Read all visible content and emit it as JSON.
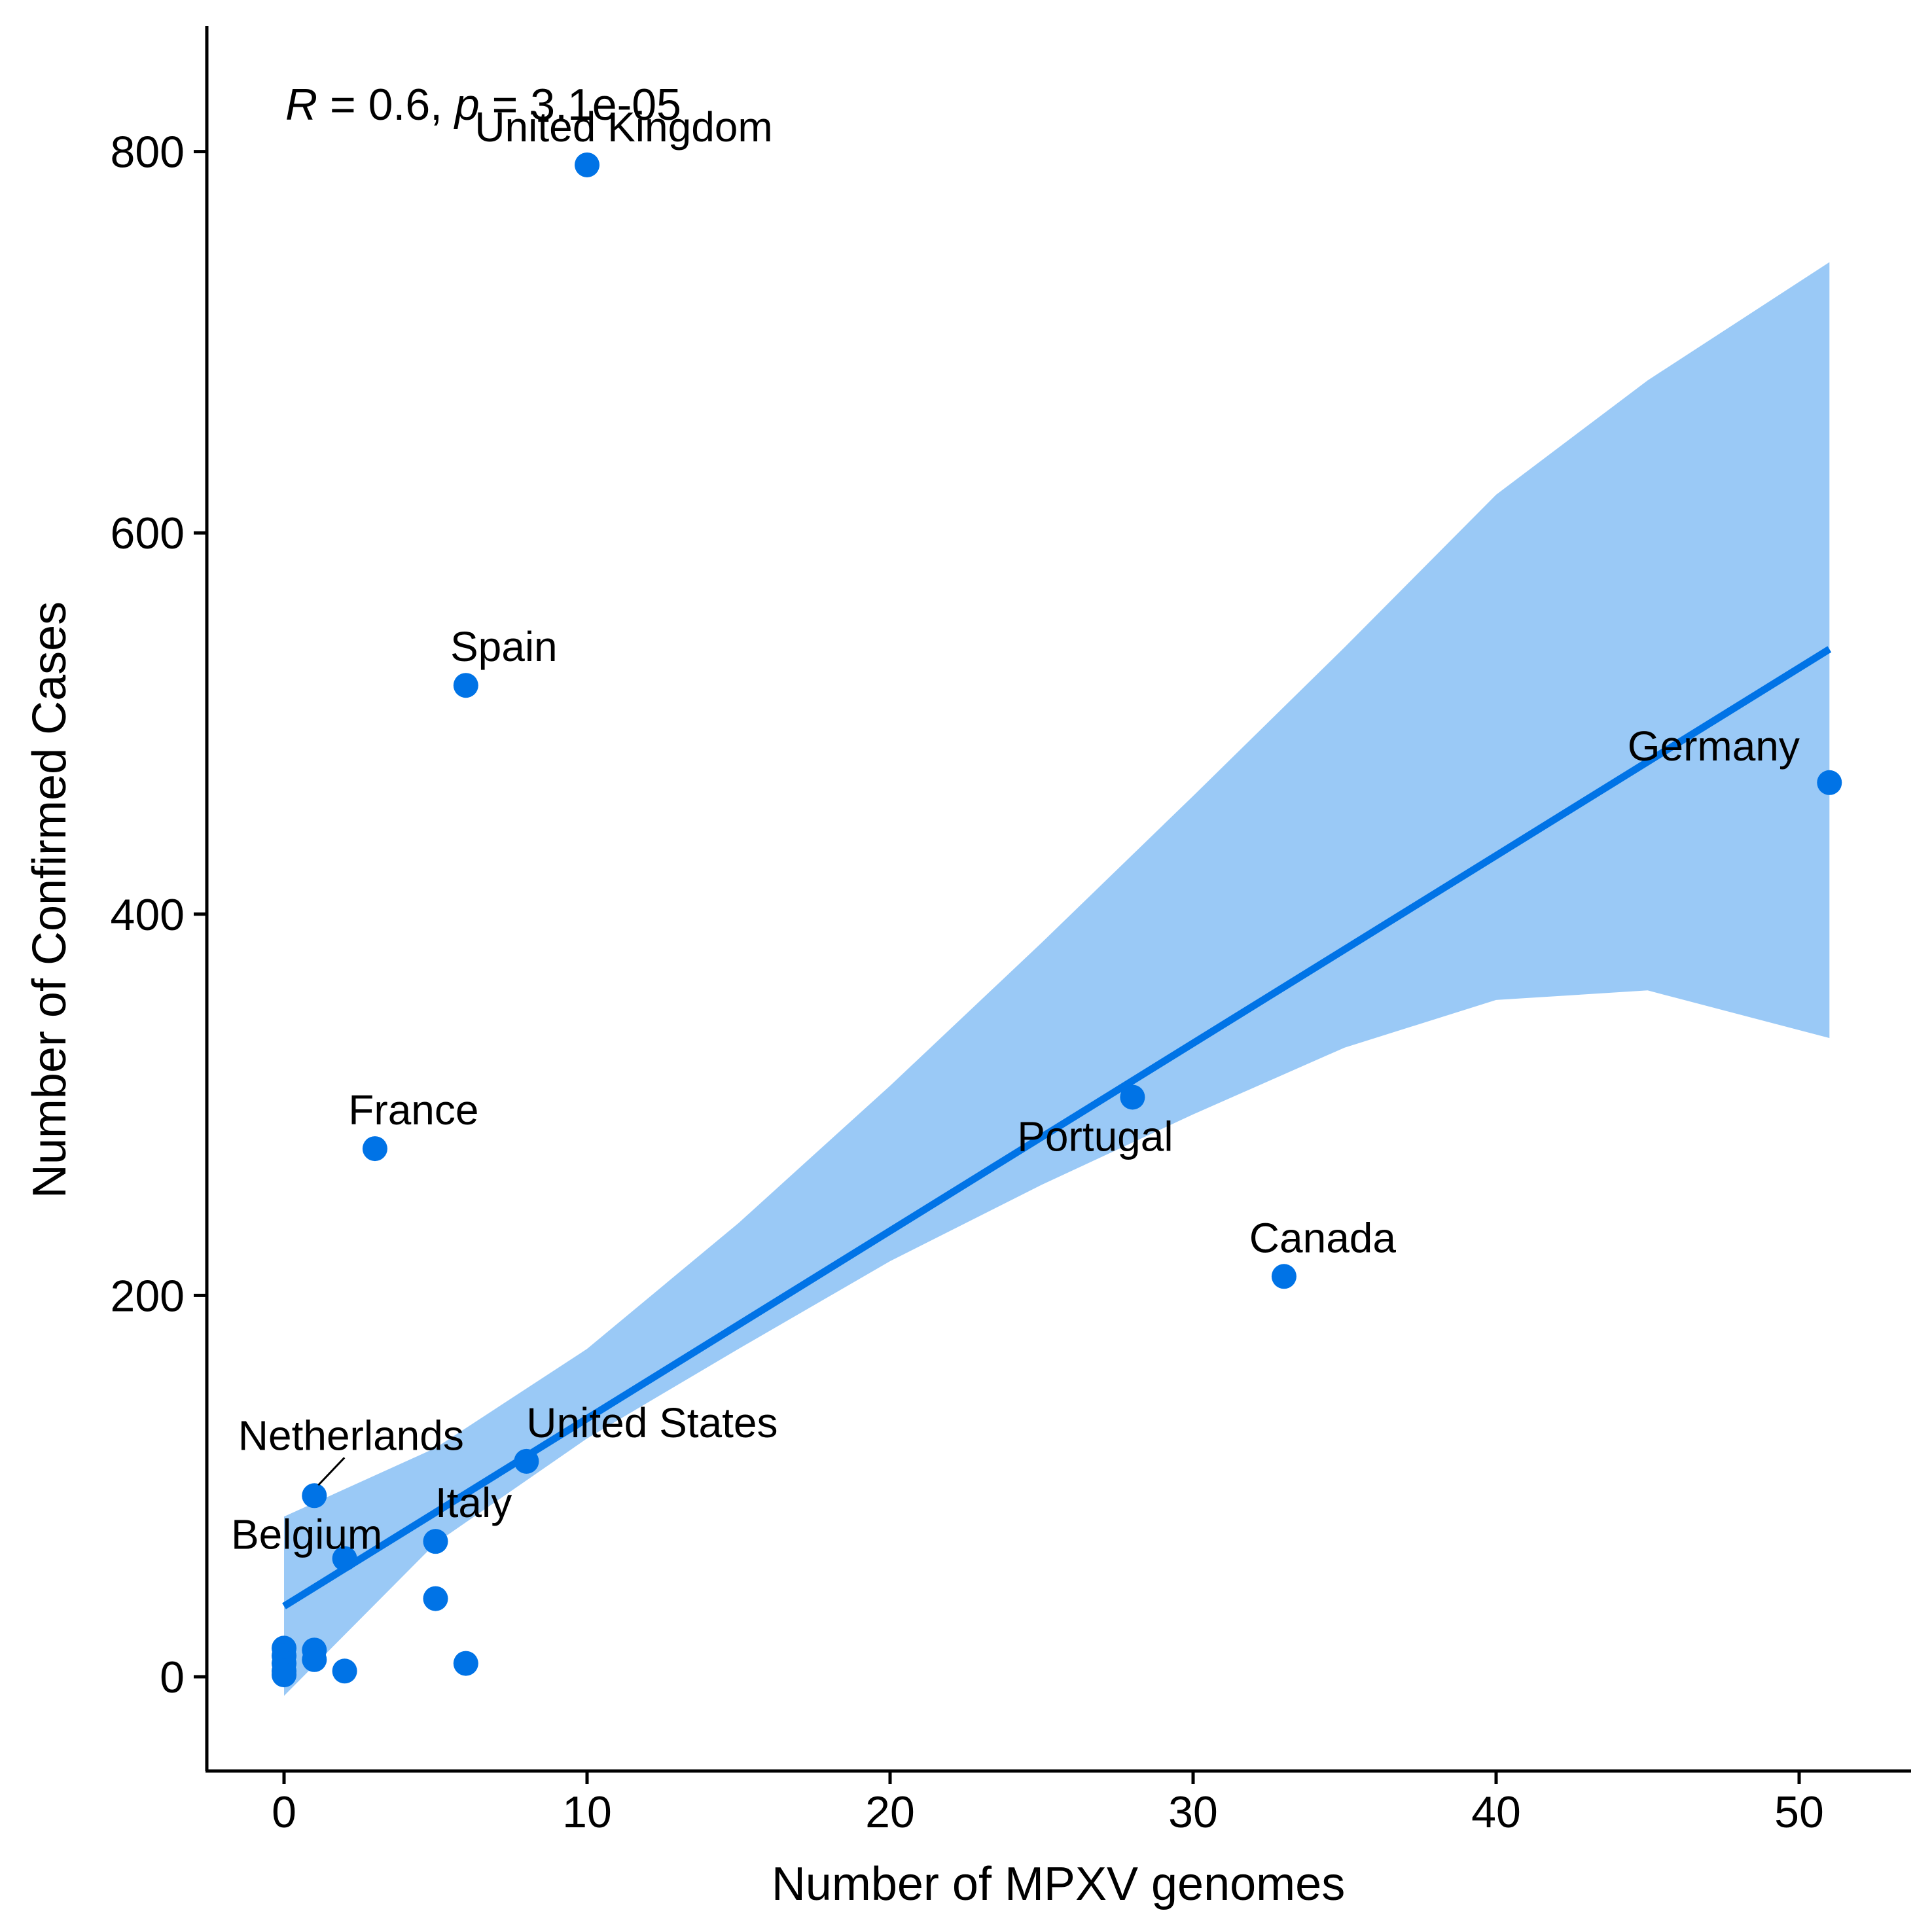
{
  "chart_data": {
    "type": "scatter",
    "xlabel": "Number of MPXV genomes",
    "ylabel": "Number of Confirmed Cases",
    "xlim": [
      -2.5,
      53.5
    ],
    "ylim": [
      -50,
      865
    ],
    "x_ticks": [
      0,
      10,
      20,
      30,
      40,
      50
    ],
    "y_ticks": [
      0,
      200,
      400,
      600,
      800
    ],
    "grid": false,
    "legend": "none",
    "colors": {
      "points": "#0073e6",
      "line": "#0073e6",
      "band": "#9ac9f6",
      "axis": "#000000"
    },
    "annotation": {
      "r_symbol": "R",
      "r_text": " = 0.6, ",
      "p_symbol": "p",
      "p_text": " = 3.1e-05"
    },
    "points": [
      {
        "x": 10,
        "y": 793,
        "label": "United Kingdom"
      },
      {
        "x": 6,
        "y": 520,
        "label": "Spain"
      },
      {
        "x": 51,
        "y": 469,
        "label": "Germany"
      },
      {
        "x": 28,
        "y": 304,
        "label": "Portugal"
      },
      {
        "x": 3,
        "y": 277,
        "label": "France"
      },
      {
        "x": 33,
        "y": 210,
        "label": "Canada"
      },
      {
        "x": 8,
        "y": 113,
        "label": "United States"
      },
      {
        "x": 1,
        "y": 95,
        "label": "Netherlands"
      },
      {
        "x": 5,
        "y": 71,
        "label": "Italy"
      },
      {
        "x": 2,
        "y": 62,
        "label": "Belgium"
      },
      {
        "x": 5,
        "y": 41,
        "label": ""
      },
      {
        "x": 1,
        "y": 14,
        "label": ""
      },
      {
        "x": 1,
        "y": 9,
        "label": ""
      },
      {
        "x": 0,
        "y": 15,
        "label": ""
      },
      {
        "x": 0,
        "y": 11,
        "label": ""
      },
      {
        "x": 0,
        "y": 7,
        "label": ""
      },
      {
        "x": 0,
        "y": 3,
        "label": ""
      },
      {
        "x": 0,
        "y": 1,
        "label": ""
      },
      {
        "x": 2,
        "y": 3,
        "label": ""
      },
      {
        "x": 6,
        "y": 7,
        "label": ""
      }
    ],
    "regression": {
      "x": [
        0,
        51
      ],
      "y": [
        37,
        539
      ]
    },
    "confidence_band": {
      "x": [
        0,
        5,
        10,
        15,
        20,
        25,
        30,
        35,
        40,
        45,
        51
      ],
      "upper": [
        84,
        120,
        172,
        238,
        310,
        385,
        462,
        540,
        620,
        680,
        742
      ],
      "lower": [
        -10,
        70,
        125,
        172,
        218,
        258,
        295,
        330,
        355,
        360,
        335
      ]
    }
  }
}
